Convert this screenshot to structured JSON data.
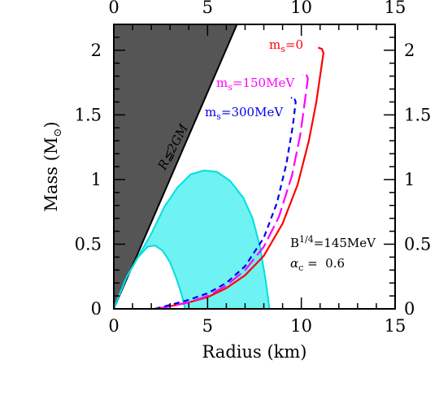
{
  "chart_data": {
    "type": "line",
    "xlabel": "Radius (km)",
    "ylabel_prefix": "Mass (M",
    "ylabel_suffix": ")",
    "xlim": [
      0,
      15
    ],
    "ylim": [
      0,
      2.2
    ],
    "x_ticks": [
      "0",
      "5",
      "10",
      "15"
    ],
    "y_ticks": [
      "0",
      "0.5",
      "1",
      "1.5",
      "2"
    ],
    "series": [
      {
        "name": "m_s=0",
        "color": "#ff0000",
        "dash": "solid",
        "points": [
          [
            2.3,
            0.0
          ],
          [
            3.0,
            0.02
          ],
          [
            4.0,
            0.05
          ],
          [
            5.0,
            0.09
          ],
          [
            6.0,
            0.16
          ],
          [
            7.0,
            0.26
          ],
          [
            8.0,
            0.41
          ],
          [
            9.0,
            0.66
          ],
          [
            9.8,
            0.96
          ],
          [
            10.4,
            1.3
          ],
          [
            10.8,
            1.6
          ],
          [
            11.05,
            1.85
          ],
          [
            11.18,
            1.98
          ],
          [
            11.1,
            2.01
          ],
          [
            10.9,
            2.02
          ]
        ]
      },
      {
        "name": "m_s=150MeV",
        "color": "#ff00ff",
        "dash": "long",
        "points": [
          [
            2.3,
            0.0
          ],
          [
            3.0,
            0.02
          ],
          [
            4.0,
            0.05
          ],
          [
            5.0,
            0.1
          ],
          [
            6.0,
            0.18
          ],
          [
            7.0,
            0.3
          ],
          [
            8.0,
            0.48
          ],
          [
            8.8,
            0.71
          ],
          [
            9.5,
            1.03
          ],
          [
            9.95,
            1.35
          ],
          [
            10.2,
            1.62
          ],
          [
            10.35,
            1.78
          ],
          [
            10.25,
            1.82
          ],
          [
            10.05,
            1.81
          ]
        ]
      },
      {
        "name": "m_s=300MeV",
        "color": "#0000ee",
        "dash": "short",
        "points": [
          [
            2.2,
            0.0
          ],
          [
            3.0,
            0.03
          ],
          [
            4.0,
            0.07
          ],
          [
            5.0,
            0.12
          ],
          [
            6.0,
            0.2
          ],
          [
            7.0,
            0.33
          ],
          [
            8.0,
            0.55
          ],
          [
            8.7,
            0.82
          ],
          [
            9.2,
            1.12
          ],
          [
            9.55,
            1.42
          ],
          [
            9.7,
            1.6
          ],
          [
            9.6,
            1.64
          ],
          [
            9.45,
            1.63
          ]
        ]
      }
    ],
    "regions": [
      {
        "name": "R≦2GM",
        "color": "#555555",
        "points": [
          [
            0,
            0
          ],
          [
            6.57,
            2.2
          ],
          [
            0,
            2.2
          ]
        ]
      },
      {
        "name": "cyan band",
        "color": "#6ff2f2",
        "outer": [
          [
            0,
            0
          ],
          [
            0.6,
            0.22
          ],
          [
            1.2,
            0.38
          ],
          [
            2.0,
            0.58
          ],
          [
            2.7,
            0.79
          ],
          [
            3.4,
            0.94
          ],
          [
            4.1,
            1.04
          ],
          [
            4.8,
            1.07
          ],
          [
            5.5,
            1.06
          ],
          [
            6.2,
            0.99
          ],
          [
            6.9,
            0.86
          ],
          [
            7.4,
            0.7
          ],
          [
            7.8,
            0.48
          ],
          [
            8.1,
            0.22
          ],
          [
            8.3,
            0.0
          ]
        ],
        "inner": [
          [
            3.8,
            0.0
          ],
          [
            3.6,
            0.12
          ],
          [
            3.3,
            0.25
          ],
          [
            3.0,
            0.36
          ],
          [
            2.6,
            0.45
          ],
          [
            2.2,
            0.49
          ],
          [
            1.8,
            0.48
          ],
          [
            1.3,
            0.4
          ],
          [
            0.7,
            0.25
          ],
          [
            0,
            0
          ]
        ]
      }
    ],
    "labels": {
      "ms0": "0",
      "ms150": "150MeV",
      "ms300": "300MeV",
      "schw": "R≦2GM",
      "bag_prefix": "B",
      "bag_exp": "1/4",
      "bag_value": "=145MeV",
      "alpha": "α",
      "alpha_sub": "c",
      "alpha_value": " =  0.6"
    },
    "grid": false
  }
}
